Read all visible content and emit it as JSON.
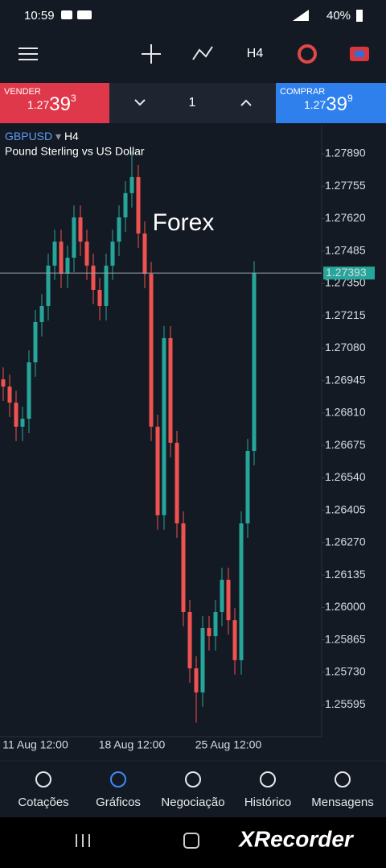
{
  "status_bar": {
    "time": "10:59",
    "battery": "40%"
  },
  "toolbar": {
    "timeframe": "H4"
  },
  "trade_bar": {
    "sell": {
      "label": "VENDER",
      "price_main": "1.27",
      "price_big": "39",
      "price_small": "3"
    },
    "volume": "1",
    "buy": {
      "label": "COMPRAR",
      "price_main": "1.27",
      "price_big": "39",
      "price_small": "9"
    }
  },
  "chart_data": {
    "type": "candlestick",
    "symbol": "GBPUSD",
    "timeframe": "H4",
    "description": "Pound Sterling vs US Dollar",
    "annotation": "Forex",
    "categories": [
      null,
      null,
      null,
      null,
      null,
      "11 Aug 12:00",
      null,
      null,
      null,
      null,
      null,
      null,
      null,
      null,
      null,
      null,
      null,
      null,
      null,
      null,
      "18 Aug 12:00",
      null,
      null,
      null,
      null,
      null,
      null,
      null,
      null,
      null,
      null,
      null,
      null,
      null,
      null,
      "25 Aug 12:00",
      null,
      null,
      null,
      null
    ],
    "open": [
      1.2695,
      1.2692,
      1.26853,
      1.26753,
      1.26786,
      1.27021,
      1.27189,
      1.27256,
      1.27424,
      1.27524,
      1.2739,
      1.27457,
      1.27625,
      1.27524,
      1.27424,
      1.27323,
      1.27256,
      1.27424,
      1.27524,
      1.27625,
      1.27726,
      1.27793,
      1.27558,
      1.2739,
      1.26753,
      1.26384,
      1.27122,
      1.26686,
      1.2635,
      1.25981,
      1.25746,
      1.25646,
      1.25914,
      1.2588,
      1.25981,
      1.26115,
      1.25947,
      1.2578,
      1.2635,
      1.26652
    ],
    "high": [
      1.27,
      1.2697,
      1.26903,
      1.26836,
      1.27071,
      1.27239,
      1.27306,
      1.27474,
      1.27574,
      1.27574,
      1.27507,
      1.27675,
      1.27675,
      1.27574,
      1.27474,
      1.27373,
      1.27474,
      1.27574,
      1.27675,
      1.27776,
      1.279,
      1.27843,
      1.27608,
      1.2744,
      1.26803,
      1.27172,
      1.27172,
      1.26736,
      1.264,
      1.26031,
      1.25796,
      1.25964,
      1.25964,
      1.26031,
      1.26165,
      1.26165,
      1.25997,
      1.264,
      1.26702,
      1.27443
    ],
    "low": [
      1.2686,
      1.26793,
      1.26693,
      1.26693,
      1.26726,
      1.26961,
      1.27129,
      1.27196,
      1.27364,
      1.2733,
      1.2733,
      1.27397,
      1.27464,
      1.27364,
      1.27263,
      1.27196,
      1.27196,
      1.27364,
      1.27464,
      1.27565,
      1.27666,
      1.27498,
      1.2733,
      1.26693,
      1.26324,
      1.26324,
      1.26626,
      1.2629,
      1.25921,
      1.25686,
      1.2552,
      1.25586,
      1.2582,
      1.2582,
      1.25921,
      1.25887,
      1.2572,
      1.2572,
      1.2629,
      1.26592
    ],
    "close": [
      1.2692,
      1.26853,
      1.26753,
      1.26786,
      1.27021,
      1.27189,
      1.27256,
      1.27424,
      1.27524,
      1.2739,
      1.27457,
      1.27625,
      1.27524,
      1.27424,
      1.27323,
      1.27256,
      1.27424,
      1.27524,
      1.27625,
      1.27726,
      1.27793,
      1.27558,
      1.2739,
      1.26753,
      1.26384,
      1.27122,
      1.26686,
      1.2635,
      1.25981,
      1.25746,
      1.25646,
      1.25914,
      1.2588,
      1.25981,
      1.26115,
      1.25947,
      1.2578,
      1.2635,
      1.26652,
      1.27393
    ],
    "up_color": "#26a69a",
    "down_color": "#ef5350",
    "ylim": [
      1.25461,
      1.27994
    ],
    "yticks": [
      {
        "value": 1.2789,
        "label": "1.27890"
      },
      {
        "value": 1.27755,
        "label": "1.27755"
      },
      {
        "value": 1.2762,
        "label": "1.27620"
      },
      {
        "value": 1.27485,
        "label": "1.27485"
      },
      {
        "value": 1.2735,
        "label": "1.27350"
      },
      {
        "value": 1.27215,
        "label": "1.27215"
      },
      {
        "value": 1.2708,
        "label": "1.27080"
      },
      {
        "value": 1.26945,
        "label": "1.26945"
      },
      {
        "value": 1.2681,
        "label": "1.26810"
      },
      {
        "value": 1.26675,
        "label": "1.26675"
      },
      {
        "value": 1.2654,
        "label": "1.26540"
      },
      {
        "value": 1.26405,
        "label": "1.26405"
      },
      {
        "value": 1.2627,
        "label": "1.26270"
      },
      {
        "value": 1.26135,
        "label": "1.26135"
      },
      {
        "value": 1.26,
        "label": "1.26000"
      },
      {
        "value": 1.25865,
        "label": "1.25865"
      },
      {
        "value": 1.2573,
        "label": "1.25730"
      },
      {
        "value": 1.25595,
        "label": "1.25595"
      }
    ],
    "current_price": 1.27393
  },
  "bottom_nav": {
    "items": [
      "Cotações",
      "Gráficos",
      "Negociação",
      "Histórico",
      "Mensagens"
    ],
    "active": 1
  },
  "watermark": "XRecorder"
}
